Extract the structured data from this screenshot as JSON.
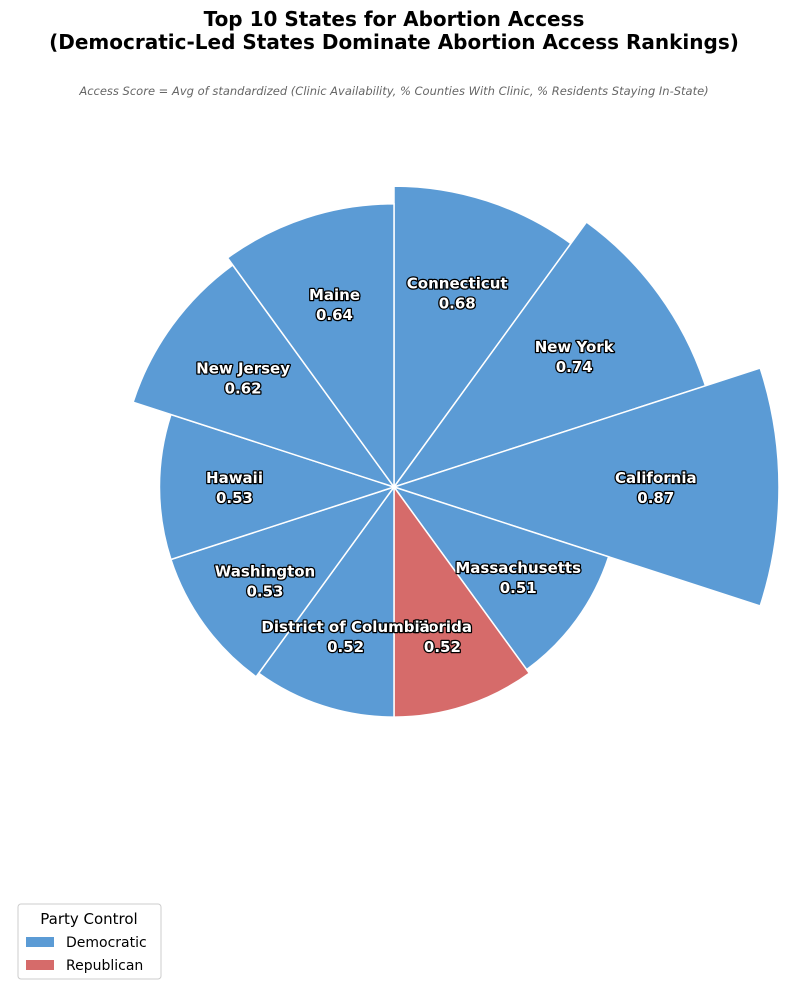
{
  "chart_data": {
    "type": "polar_bar",
    "title_line1": "Top 10 States for Abortion Access",
    "title_line2": "(Democratic-Led States Dominate Abortion Access Rankings)",
    "subtitle": "Access Score = Avg of standardized (Clinic Availability, % Counties With Clinic, % Residents Staying In-State)",
    "categories": [
      "Connecticut",
      "New York",
      "California",
      "Massachusetts",
      "Florida",
      "District of Columbia",
      "Washington",
      "Hawaii",
      "New Jersey",
      "Maine"
    ],
    "values": [
      0.68,
      0.74,
      0.87,
      0.51,
      0.52,
      0.52,
      0.53,
      0.53,
      0.62,
      0.64
    ],
    "value_labels": [
      "0.68",
      "0.74",
      "0.87",
      "0.51",
      "0.52",
      "0.52",
      "0.53",
      "0.53",
      "0.62",
      "0.64"
    ],
    "party": [
      "Democratic",
      "Democratic",
      "Democratic",
      "Democratic",
      "Republican",
      "Democratic",
      "Democratic",
      "Democratic",
      "Democratic",
      "Democratic"
    ],
    "colors": {
      "Democratic": "#5b9bd5",
      "Republican": "#d66b6a"
    },
    "legend": {
      "title": "Party Control",
      "entries": [
        "Democratic",
        "Republican"
      ],
      "position": "lower-left"
    },
    "start_angle": "top",
    "direction": "clockwise",
    "grid": false
  }
}
